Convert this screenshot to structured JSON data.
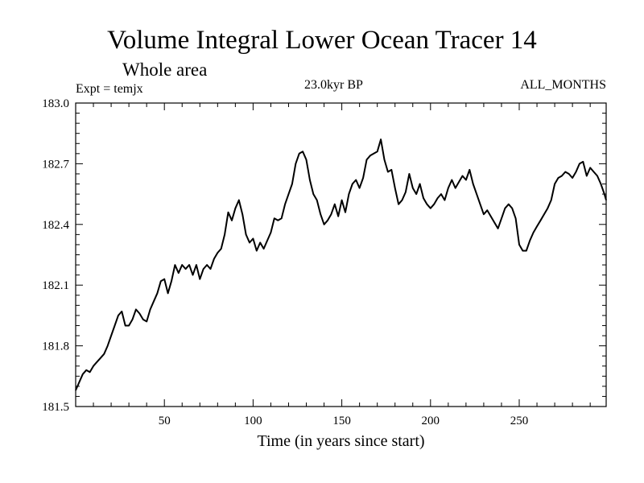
{
  "header": {
    "title": "Volume Integral Lower Ocean Tracer 14",
    "subtitle": "Whole area",
    "experiment": "Expt = temjx",
    "period": "23.0kyr BP",
    "months": "ALL_MONTHS"
  },
  "chart_data": {
    "type": "line",
    "title": "Volume Integral Lower Ocean Tracer 14",
    "subtitle": "Whole area",
    "xlabel": "Time (in years since start)",
    "ylabel": "",
    "xlim": [
      0,
      299
    ],
    "ylim": [
      181.5,
      183.0
    ],
    "xticks": [
      50,
      100,
      150,
      200,
      250
    ],
    "xtick_labels": [
      "50",
      "100",
      "150",
      "200",
      "250"
    ],
    "yticks": [
      181.5,
      181.8,
      182.1,
      182.4,
      182.7,
      183.0
    ],
    "ytick_labels": [
      "181.5",
      "181.8",
      "182.1",
      "182.4",
      "182.7",
      "183.0"
    ],
    "grid": false,
    "series": [
      {
        "name": "Volume Integral Lower Ocean Tracer 14",
        "x": [
          0,
          2,
          4,
          6,
          8,
          10,
          12,
          14,
          16,
          18,
          20,
          22,
          24,
          26,
          28,
          30,
          32,
          34,
          36,
          38,
          40,
          42,
          44,
          46,
          48,
          50,
          52,
          54,
          56,
          58,
          60,
          62,
          64,
          66,
          68,
          70,
          72,
          74,
          76,
          78,
          80,
          82,
          84,
          86,
          88,
          90,
          92,
          94,
          96,
          98,
          100,
          102,
          104,
          106,
          108,
          110,
          112,
          114,
          116,
          118,
          120,
          122,
          124,
          126,
          128,
          130,
          132,
          134,
          136,
          138,
          140,
          142,
          144,
          146,
          148,
          150,
          152,
          154,
          156,
          158,
          160,
          162,
          164,
          166,
          168,
          170,
          172,
          174,
          176,
          178,
          180,
          182,
          184,
          186,
          188,
          190,
          192,
          194,
          196,
          198,
          200,
          202,
          204,
          206,
          208,
          210,
          212,
          214,
          216,
          218,
          220,
          222,
          224,
          226,
          228,
          230,
          232,
          234,
          236,
          238,
          240,
          242,
          244,
          246,
          248,
          250,
          252,
          254,
          256,
          258,
          260,
          262,
          264,
          266,
          268,
          270,
          272,
          274,
          276,
          278,
          280,
          282,
          284,
          286,
          288,
          290,
          292,
          294,
          296,
          298,
          299
        ],
        "values": [
          181.58,
          181.62,
          181.66,
          181.68,
          181.67,
          181.7,
          181.72,
          181.74,
          181.76,
          181.8,
          181.85,
          181.9,
          181.95,
          181.97,
          181.9,
          181.9,
          181.93,
          181.98,
          181.96,
          181.93,
          181.92,
          181.98,
          182.02,
          182.06,
          182.12,
          182.13,
          182.06,
          182.12,
          182.2,
          182.16,
          182.2,
          182.18,
          182.2,
          182.15,
          182.2,
          182.13,
          182.18,
          182.2,
          182.18,
          182.23,
          182.26,
          182.28,
          182.35,
          182.46,
          182.42,
          182.48,
          182.52,
          182.45,
          182.35,
          182.31,
          182.33,
          182.27,
          182.31,
          182.28,
          182.32,
          182.36,
          182.43,
          182.42,
          182.43,
          182.5,
          182.55,
          182.6,
          182.7,
          182.75,
          182.76,
          182.72,
          182.62,
          182.55,
          182.52,
          182.45,
          182.4,
          182.42,
          182.45,
          182.5,
          182.44,
          182.52,
          182.46,
          182.55,
          182.6,
          182.62,
          182.58,
          182.63,
          182.72,
          182.74,
          182.75,
          182.76,
          182.82,
          182.72,
          182.66,
          182.67,
          182.58,
          182.5,
          182.52,
          182.56,
          182.65,
          182.58,
          182.55,
          182.6,
          182.53,
          182.5,
          182.48,
          182.5,
          182.53,
          182.55,
          182.52,
          182.58,
          182.62,
          182.58,
          182.61,
          182.64,
          182.62,
          182.67,
          182.6,
          182.55,
          182.5,
          182.45,
          182.47,
          182.44,
          182.41,
          182.38,
          182.43,
          182.48,
          182.5,
          182.48,
          182.43,
          182.3,
          182.27,
          182.27,
          182.32,
          182.36,
          182.39,
          182.42,
          182.45,
          182.48,
          182.52,
          182.6,
          182.63,
          182.64,
          182.66,
          182.65,
          182.63,
          182.66,
          182.7,
          182.71,
          182.64,
          182.68,
          182.66,
          182.64,
          182.6,
          182.55,
          182.52
        ]
      }
    ]
  }
}
